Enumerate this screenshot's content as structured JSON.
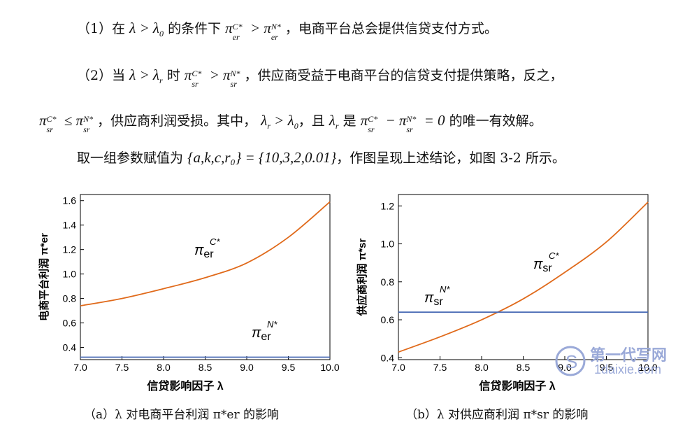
{
  "text": {
    "l1_num": "（1）在",
    "l1_cond": "的条件下",
    "l1_end": "，电商平台总会提供信贷支付方式。",
    "l2_num": "（2）当",
    "l2_time": "时",
    "l2_end": "，供应商受益于电商平台的信贷支付提供策略，反之，",
    "l3_a": "，供应商利润受损。其中，",
    "l3_b": "，且",
    "l3_c": "是",
    "l3_d": "的唯一有效解。",
    "l4_a": "取一组参数赋值为",
    "l4_params": "{a,k,c,r₀} = {10,3,2,0.01}",
    "l4_b": "，作图呈现上述结论，如图 3-2 所示。"
  },
  "caption_a": "（a）λ 对电商平台利润 π*er 的影响",
  "caption_b": "（b）λ 对供应商利润 π*sr 的影响",
  "watermark": {
    "cn": "第一代写网",
    "en": "1daixie.com"
  },
  "chart_data": [
    {
      "type": "line",
      "title": "",
      "xlabel": "信贷影响因子 λ",
      "ylabel": "电商平台利润 π*er",
      "x": [
        7.0,
        7.5,
        8.0,
        8.5,
        9.0,
        9.5,
        10.0
      ],
      "xticks": [
        "7.0",
        "7.5",
        "8.0",
        "8.5",
        "9.0",
        "9.5",
        "10.0"
      ],
      "yticks": [
        "0.4",
        "0.6",
        "0.8",
        "1.0",
        "1.2",
        "1.4",
        "1.6"
      ],
      "xlim": [
        7.0,
        10.0
      ],
      "ylim": [
        0.3,
        1.65
      ],
      "series": [
        {
          "name": "πC*er",
          "color": "#e06a1b",
          "values": [
            0.74,
            0.8,
            0.88,
            0.97,
            1.09,
            1.3,
            1.59
          ]
        },
        {
          "name": "πN*er",
          "color": "#4a6bb5",
          "values": [
            0.32,
            0.32,
            0.32,
            0.32,
            0.32,
            0.32,
            0.32
          ]
        }
      ],
      "labels": [
        {
          "base": "π",
          "sub": "er",
          "sup": "C*"
        },
        {
          "base": "π",
          "sub": "er",
          "sup": "N*"
        }
      ]
    },
    {
      "type": "line",
      "title": "",
      "xlabel": "信贷影响因子 λ",
      "ylabel": "供应商利润 π*sr",
      "x": [
        7.0,
        7.5,
        8.0,
        8.5,
        9.0,
        9.5,
        10.0
      ],
      "xticks": [
        "7.0",
        "7.5",
        "8.0",
        "8.5",
        "9.0",
        "9.5",
        "10.0"
      ],
      "yticks": [
        "0.4",
        "0.6",
        "0.8",
        "1.0",
        "1.2"
      ],
      "xlim": [
        7.0,
        10.0
      ],
      "ylim": [
        0.39,
        1.26
      ],
      "series": [
        {
          "name": "πC*sr",
          "color": "#e06a1b",
          "values": [
            0.43,
            0.51,
            0.6,
            0.71,
            0.85,
            1.01,
            1.22
          ]
        },
        {
          "name": "πN*sr",
          "color": "#4a6bb5",
          "values": [
            0.64,
            0.64,
            0.64,
            0.64,
            0.64,
            0.64,
            0.64
          ]
        }
      ],
      "labels": [
        {
          "base": "π",
          "sub": "sr",
          "sup": "C*"
        },
        {
          "base": "π",
          "sub": "sr",
          "sup": "N*"
        }
      ]
    }
  ]
}
